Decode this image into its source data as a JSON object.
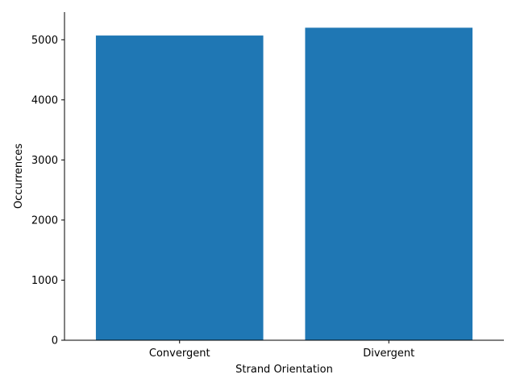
{
  "chart_data": {
    "type": "bar",
    "title": "",
    "xlabel": "Strand Orientation",
    "ylabel": "Occurrences",
    "categories": [
      "Convergent",
      "Divergent"
    ],
    "values": [
      5070,
      5200
    ],
    "ylim": [
      0,
      5460
    ],
    "yticks": [
      0,
      1000,
      2000,
      3000,
      4000,
      5000
    ],
    "ytick_labels": [
      "0",
      "1000",
      "2000",
      "3000",
      "4000",
      "5000"
    ],
    "bar_color": "#1f77b4",
    "grid": false,
    "legend": "none",
    "spines": [
      "left",
      "bottom"
    ]
  }
}
